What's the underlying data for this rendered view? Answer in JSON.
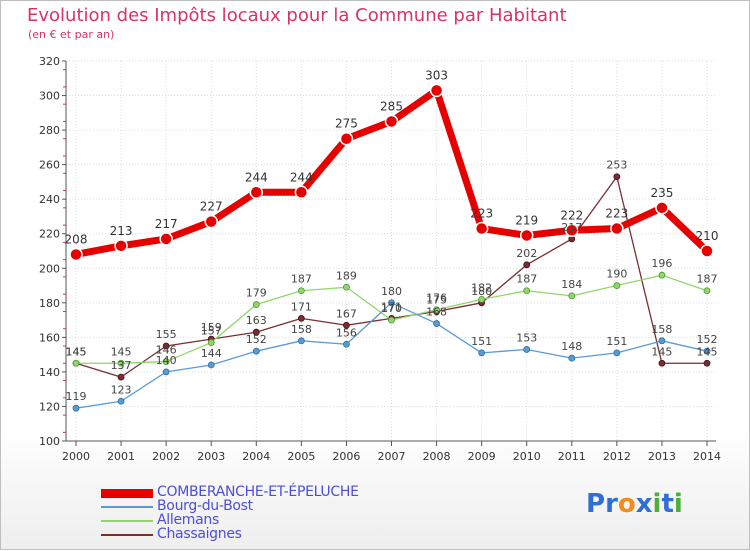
{
  "chart_data": {
    "type": "line",
    "title": "Evolution des Impôts locaux pour la Commune par Habitant",
    "subtitle": "(en € et par an)",
    "xlabel": "",
    "ylabel": "",
    "ylim": [
      100,
      320
    ],
    "yticks": [
      "100",
      "120",
      "140",
      "160",
      "180",
      "200",
      "220",
      "240",
      "260",
      "280",
      "300",
      "320"
    ],
    "categories": [
      "2000",
      "2001",
      "2002",
      "2003",
      "2004",
      "2005",
      "2006",
      "2007",
      "2008",
      "2009",
      "2010",
      "2011",
      "2012",
      "2013",
      "2014"
    ],
    "grid": true,
    "legend_position": "bottom",
    "series": [
      {
        "name": "COMBERANCHE-ET-ÉPELUCHE",
        "color": "#e60000",
        "values": [
          208,
          213,
          217,
          227,
          244,
          244,
          275,
          285,
          303,
          223,
          219,
          222,
          223,
          235,
          210
        ],
        "labels": [
          "208",
          "213",
          "217",
          "227",
          "244",
          "244",
          "275",
          "285",
          "303",
          "223",
          "219",
          "222",
          "223",
          "235",
          "210"
        ]
      },
      {
        "name": "Bourg-du-Bost",
        "color": "#5b9bd5",
        "values": [
          119,
          123,
          140,
          144,
          152,
          158,
          156,
          180,
          168,
          151,
          153,
          148,
          151,
          158,
          152
        ],
        "labels": [
          "119",
          "123",
          "140",
          "144",
          "152",
          "158",
          "156",
          "180",
          "168",
          "151",
          "153",
          "148",
          "151",
          "158",
          "152"
        ]
      },
      {
        "name": "Allemans",
        "color": "#8fd66b",
        "values": [
          145,
          145,
          146,
          157,
          179,
          187,
          189,
          170,
          176,
          182,
          187,
          184,
          190,
          196,
          187
        ],
        "labels": [
          "145",
          "145",
          "146",
          "157",
          "179",
          "187",
          "189",
          "170",
          "176",
          "182",
          "187",
          "184",
          "190",
          "196",
          "187"
        ]
      },
      {
        "name": "Chassaignes",
        "color": "#7a2e32",
        "values": [
          145,
          137,
          155,
          159,
          163,
          171,
          167,
          171,
          175,
          180,
          202,
          217,
          253,
          145,
          145
        ],
        "labels": [
          "145",
          "137",
          "155",
          "159",
          "163",
          "171",
          "167",
          "171",
          "175",
          "180",
          "202",
          "217",
          "253",
          "145",
          "145"
        ]
      }
    ]
  },
  "branding": {
    "logo_text": "Proxiti",
    "logo_colors": [
      "#2e6fd6",
      "#2e6fd6",
      "#f28c1b",
      "#2e6fd6",
      "#4caf3a",
      "#2e6fd6",
      "#4caf3a"
    ]
  }
}
